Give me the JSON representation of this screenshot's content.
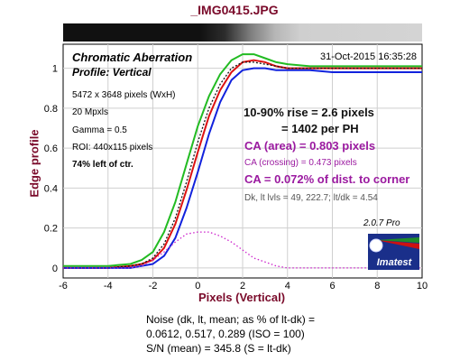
{
  "title": "_IMG0415.JPG",
  "chart_data": {
    "type": "line",
    "heading": "Chromatic Aberration",
    "subtitle": "Profile: Vertical",
    "timestamp": "31-Oct-2015 16:35:28",
    "xlabel": "Pixels (Vertical)",
    "ylabel": "Edge profile",
    "xlim": [
      -6,
      10
    ],
    "ylim": [
      -0.05,
      1.12
    ],
    "xticks": [
      "-6",
      "-4",
      "-2",
      "0",
      "2",
      "4",
      "6",
      "8",
      "10"
    ],
    "yticks": [
      "0",
      "0.2",
      "0.4",
      "0.6",
      "0.8",
      "1"
    ],
    "grid": true,
    "x": [
      -6,
      -5,
      -4,
      -3,
      -2.5,
      -2,
      -1.5,
      -1,
      -0.5,
      0,
      0.5,
      1,
      1.5,
      2,
      2.5,
      3,
      3.5,
      4,
      5,
      6,
      7,
      8,
      9,
      10
    ],
    "series": [
      {
        "color": "#22bb22",
        "values": [
          0.01,
          0.01,
          0.01,
          0.02,
          0.04,
          0.08,
          0.18,
          0.33,
          0.52,
          0.71,
          0.86,
          0.97,
          1.04,
          1.07,
          1.07,
          1.05,
          1.03,
          1.02,
          1.01,
          1.01,
          1.01,
          1.01,
          1.01,
          1.01
        ]
      },
      {
        "color": "#dd1111",
        "values": [
          0.0,
          0.0,
          0.0,
          0.01,
          0.02,
          0.04,
          0.1,
          0.22,
          0.39,
          0.58,
          0.76,
          0.89,
          0.98,
          1.03,
          1.04,
          1.03,
          1.01,
          1.0,
          1.0,
          1.0,
          1.0,
          1.0,
          1.0,
          1.0
        ]
      },
      {
        "color": "#1122dd",
        "values": [
          0.0,
          0.0,
          0.0,
          0.0,
          0.01,
          0.02,
          0.06,
          0.15,
          0.3,
          0.48,
          0.67,
          0.83,
          0.94,
          0.99,
          1.0,
          1.0,
          0.99,
          0.99,
          0.99,
          0.98,
          0.98,
          0.98,
          0.98,
          0.98
        ]
      },
      {
        "color": "#111111",
        "dashed": true,
        "values": [
          0.0,
          0.0,
          0.0,
          0.01,
          0.02,
          0.05,
          0.12,
          0.25,
          0.43,
          0.63,
          0.8,
          0.92,
          1.0,
          1.03,
          1.03,
          1.02,
          1.01,
          1.0,
          1.0,
          1.0,
          1.0,
          1.0,
          1.0,
          1.0
        ]
      },
      {
        "color": "#cc22cc",
        "dotted": true,
        "values": [
          0.0,
          0.0,
          0.0,
          0.0,
          0.01,
          0.04,
          0.08,
          0.13,
          0.17,
          0.18,
          0.18,
          0.16,
          0.13,
          0.09,
          0.05,
          0.03,
          0.01,
          0.0,
          0.0,
          0.0,
          0.0,
          0.0,
          0.0,
          0.0
        ]
      }
    ],
    "annotations": {
      "info": [
        "5472 x 3648 pixels (WxH)",
        "20 Mpxls",
        "Gamma = 0.5",
        "ROI: 440x115 pixels",
        "74% left of ctr."
      ],
      "rise": "10-90% rise = 2.6 pixels",
      "per_ph": "= 1402 per PH",
      "ca_area": "CA (area) = 0.803 pixels",
      "ca_crossing": "CA (crossing) = 0.473 pixels",
      "ca_dist": "CA = 0.072% of dist. to corner",
      "dk_lt": "Dk, lt lvls = 49, 222.7;  lt/dk = 4.54",
      "version": "2.0.7  Pro",
      "logo_text": "Imatest"
    },
    "noise": {
      "line1": "Noise (dk, lt, mean; as % of lt-dk) =",
      "line2": "0.0612,  0.517,  0.289  (ISO =  100)",
      "line3": "S/N (mean) = 345.8  (S = lt-dk)"
    }
  }
}
